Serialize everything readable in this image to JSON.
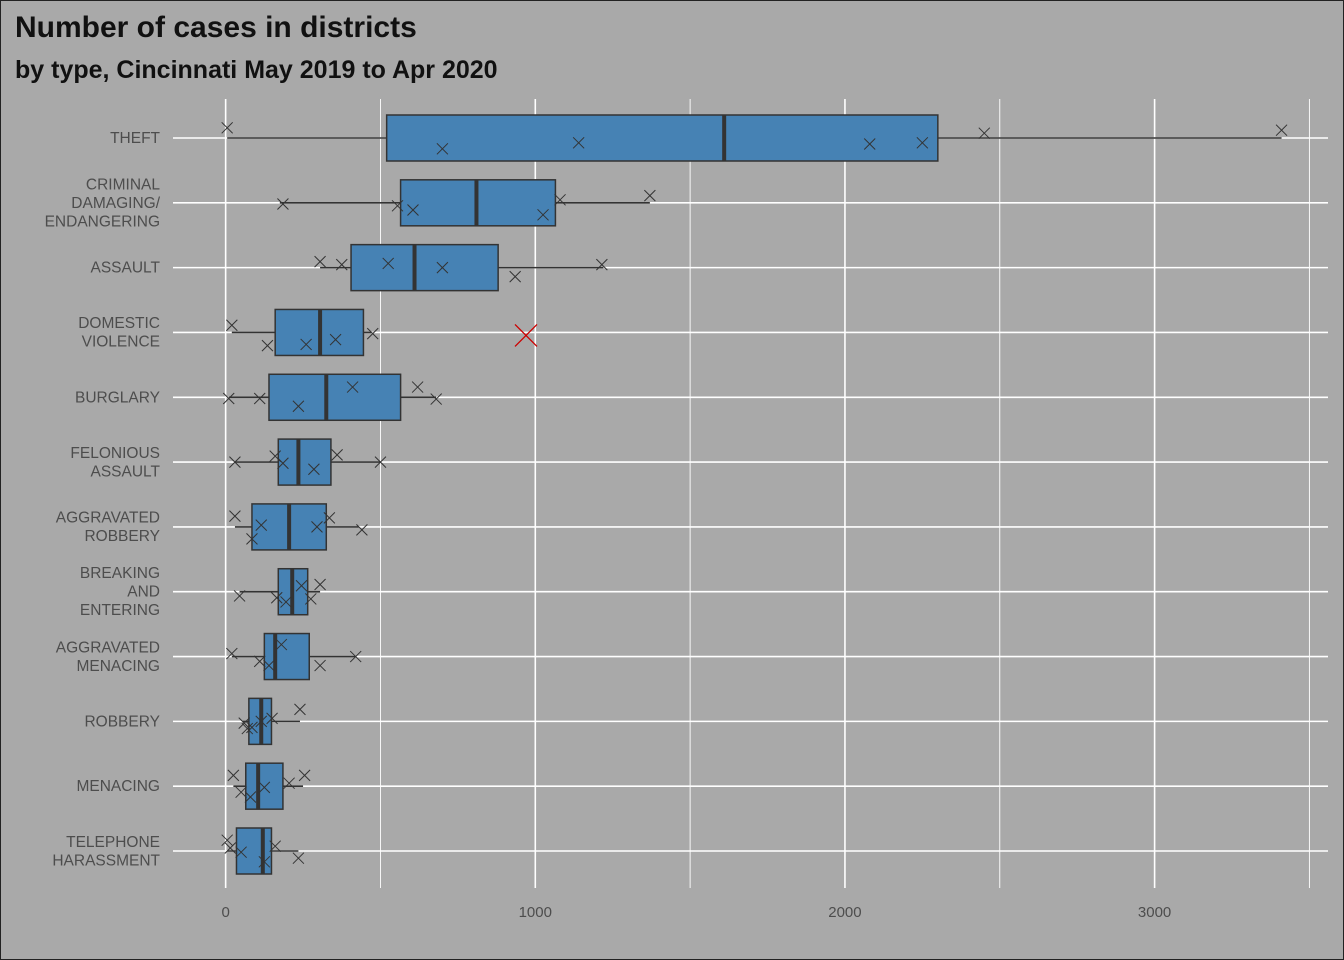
{
  "title": "Number of cases in districts",
  "subtitle": "by type, Cincinnati May 2019 to Apr 2020",
  "colors": {
    "background": "#a9a9a9",
    "grid": "#ffffff",
    "box_fill": "#4682b4",
    "box_stroke": "#333333",
    "point": "#333333",
    "outlier": "#cc0000",
    "tick_text": "#4d4d4d"
  },
  "chart_data": {
    "type": "boxplot",
    "orientation": "horizontal",
    "title": "Number of cases in districts",
    "subtitle": "by type, Cincinnati May 2019 to Apr 2020",
    "xlabel": "",
    "ylabel": "",
    "xlim": [
      -170,
      3560
    ],
    "x_ticks": [
      0,
      1000,
      2000,
      3000
    ],
    "grid": true,
    "categories": [
      {
        "label": "THEFT",
        "lines": [
          "THEFT"
        ],
        "whisker_low": 5,
        "q1": 520,
        "median": 1610,
        "q3": 2300,
        "whisker_high": 3410,
        "points": [
          [
            5,
            -0.17
          ],
          [
            700,
            0.18
          ],
          [
            1140,
            0.08
          ],
          [
            2080,
            0.1
          ],
          [
            2250,
            0.08
          ],
          [
            2450,
            -0.08
          ],
          [
            3410,
            -0.13
          ]
        ],
        "outliers": []
      },
      {
        "label": "CRIMINAL DAMAGING/ ENDANGERING",
        "lines": [
          "CRIMINAL",
          "DAMAGING/",
          "ENDANGERING"
        ],
        "whisker_low": 175,
        "q1": 565,
        "median": 810,
        "q3": 1065,
        "whisker_high": 1370,
        "points": [
          [
            185,
            0.02
          ],
          [
            555,
            0.05
          ],
          [
            605,
            0.12
          ],
          [
            1025,
            0.2
          ],
          [
            1080,
            -0.05
          ],
          [
            1370,
            -0.12
          ]
        ],
        "outliers": []
      },
      {
        "label": "ASSAULT",
        "lines": [
          "ASSAULT"
        ],
        "whisker_low": 305,
        "q1": 405,
        "median": 610,
        "q3": 880,
        "whisker_high": 1220,
        "points": [
          [
            305,
            -0.1
          ],
          [
            375,
            -0.05
          ],
          [
            525,
            -0.07
          ],
          [
            700,
            0.0
          ],
          [
            935,
            0.15
          ],
          [
            1215,
            -0.05
          ]
        ],
        "outliers": []
      },
      {
        "label": "DOMESTIC VIOLENCE",
        "lines": [
          "DOMESTIC",
          "VIOLENCE"
        ],
        "whisker_low": 20,
        "q1": 160,
        "median": 305,
        "q3": 445,
        "whisker_high": 470,
        "points": [
          [
            20,
            -0.12
          ],
          [
            135,
            0.22
          ],
          [
            260,
            0.2
          ],
          [
            355,
            0.12
          ],
          [
            475,
            0.02
          ]
        ],
        "outliers": [
          [
            970,
            0.05
          ]
        ]
      },
      {
        "label": "BURGLARY",
        "lines": [
          "BURGLARY"
        ],
        "whisker_low": 10,
        "q1": 140,
        "median": 325,
        "q3": 565,
        "whisker_high": 680,
        "points": [
          [
            10,
            0.02
          ],
          [
            110,
            0.02
          ],
          [
            235,
            0.15
          ],
          [
            410,
            -0.17
          ],
          [
            620,
            -0.17
          ],
          [
            680,
            0.03
          ]
        ],
        "outliers": []
      },
      {
        "label": "FELONIOUS ASSAULT",
        "lines": [
          "FELONIOUS",
          "ASSAULT"
        ],
        "whisker_low": 30,
        "q1": 170,
        "median": 235,
        "q3": 340,
        "whisker_high": 500,
        "points": [
          [
            30,
            0.0
          ],
          [
            160,
            -0.1
          ],
          [
            185,
            0.02
          ],
          [
            285,
            0.12
          ],
          [
            360,
            -0.12
          ],
          [
            500,
            0.0
          ]
        ],
        "outliers": []
      },
      {
        "label": "AGGRAVATED ROBBERY",
        "lines": [
          "AGGRAVATED",
          "ROBBERY"
        ],
        "whisker_low": 30,
        "q1": 85,
        "median": 205,
        "q3": 325,
        "whisker_high": 430,
        "points": [
          [
            30,
            -0.18
          ],
          [
            85,
            0.2
          ],
          [
            115,
            -0.03
          ],
          [
            295,
            0.0
          ],
          [
            335,
            -0.15
          ],
          [
            440,
            0.05
          ]
        ],
        "outliers": []
      },
      {
        "label": "BREAKING AND ENTERING",
        "lines": [
          "BREAKING",
          "AND",
          "ENTERING"
        ],
        "whisker_low": 45,
        "q1": 170,
        "median": 215,
        "q3": 265,
        "whisker_high": 305,
        "points": [
          [
            45,
            0.07
          ],
          [
            165,
            0.1
          ],
          [
            195,
            0.17
          ],
          [
            245,
            -0.1
          ],
          [
            275,
            0.12
          ],
          [
            305,
            -0.12
          ]
        ],
        "outliers": []
      },
      {
        "label": "AGGRAVATED MENACING",
        "lines": [
          "AGGRAVATED",
          "MENACING"
        ],
        "whisker_low": 20,
        "q1": 125,
        "median": 160,
        "q3": 270,
        "whisker_high": 420,
        "points": [
          [
            20,
            -0.05
          ],
          [
            110,
            0.08
          ],
          [
            140,
            0.15
          ],
          [
            180,
            -0.2
          ],
          [
            305,
            0.15
          ],
          [
            420,
            0.0
          ]
        ],
        "outliers": []
      },
      {
        "label": "ROBBERY",
        "lines": [
          "ROBBERY"
        ],
        "whisker_low": 55,
        "q1": 75,
        "median": 115,
        "q3": 148,
        "whisker_high": 240,
        "points": [
          [
            60,
            0.03
          ],
          [
            70,
            0.12
          ],
          [
            85,
            0.1
          ],
          [
            115,
            0.0
          ],
          [
            150,
            -0.05
          ],
          [
            240,
            -0.2
          ]
        ],
        "outliers": []
      },
      {
        "label": "MENACING",
        "lines": [
          "MENACING"
        ],
        "whisker_low": 25,
        "q1": 65,
        "median": 105,
        "q3": 185,
        "whisker_high": 250,
        "points": [
          [
            25,
            -0.18
          ],
          [
            50,
            0.1
          ],
          [
            125,
            0.02
          ],
          [
            205,
            -0.05
          ],
          [
            255,
            -0.18
          ],
          [
            80,
            0.18
          ]
        ],
        "outliers": []
      },
      {
        "label": "TELEPHONE HARASSMENT",
        "lines": [
          "TELEPHONE",
          "HARASSMENT"
        ],
        "whisker_low": 5,
        "q1": 35,
        "median": 120,
        "q3": 148,
        "whisker_high": 235,
        "points": [
          [
            5,
            -0.18
          ],
          [
            15,
            -0.05
          ],
          [
            50,
            0.02
          ],
          [
            125,
            0.18
          ],
          [
            160,
            -0.08
          ],
          [
            235,
            0.12
          ]
        ],
        "outliers": []
      }
    ]
  }
}
